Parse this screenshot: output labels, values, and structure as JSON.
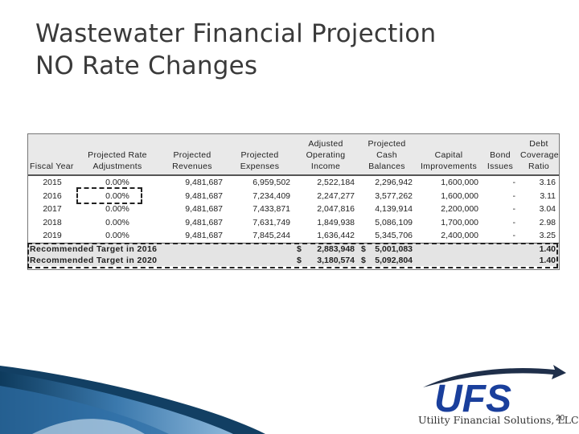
{
  "title": {
    "line1": "Wastewater Financial Projection",
    "line2": "NO Rate Changes"
  },
  "table": {
    "headers": {
      "fiscal_year": "Fiscal Year",
      "rate": "Projected Rate Adjustments",
      "revenues": "Projected Revenues",
      "expenses": "Projected Expenses",
      "operating_income": "Adjusted Operating Income",
      "cash": "Projected Cash Balances",
      "capital": "Capital Improvements",
      "bond": "Bond Issues",
      "coverage": "Debt Coverage Ratio"
    },
    "rows": [
      {
        "year": "2015",
        "rate": "0.00%",
        "revenues": "9,481,687",
        "expenses": "6,959,502",
        "operating_income": "2,522,184",
        "cash": "2,296,942",
        "capital": "1,600,000",
        "bond": "-",
        "coverage": "3.16"
      },
      {
        "year": "2016",
        "rate": "0.00%",
        "revenues": "9,481,687",
        "expenses": "7,234,409",
        "operating_income": "2,247,277",
        "cash": "3,577,262",
        "capital": "1,600,000",
        "bond": "-",
        "coverage": "3.11"
      },
      {
        "year": "2017",
        "rate": "0.00%",
        "revenues": "9,481,687",
        "expenses": "7,433,871",
        "operating_income": "2,047,816",
        "cash": "4,139,914",
        "capital": "2,200,000",
        "bond": "-",
        "coverage": "3.04"
      },
      {
        "year": "2018",
        "rate": "0.00%",
        "revenues": "9,481,687",
        "expenses": "7,631,749",
        "operating_income": "1,849,938",
        "cash": "5,086,109",
        "capital": "1,700,000",
        "bond": "-",
        "coverage": "2.98"
      },
      {
        "year": "2019",
        "rate": "0.00%",
        "revenues": "9,481,687",
        "expenses": "7,845,244",
        "operating_income": "1,636,442",
        "cash": "5,345,706",
        "capital": "2,400,000",
        "bond": "-",
        "coverage": "3.25"
      }
    ],
    "targets": [
      {
        "label": "Recommended Target in 2016",
        "operating_income": "2,883,948",
        "cash": "5,001,083",
        "coverage": "1.40"
      },
      {
        "label": "Recommended Target in 2020",
        "operating_income": "3,180,574",
        "cash": "5,092,804",
        "coverage": "1.40"
      }
    ],
    "currency_symbol": "$"
  },
  "footer": {
    "logo_text": "UFS",
    "company": "Utility Financial Solutions, LLC",
    "page_number": "20"
  },
  "colors": {
    "logo_blue": "#1a3f9c",
    "wave_dark": "#0d3a5c",
    "wave_light": "#6fa8d6"
  }
}
